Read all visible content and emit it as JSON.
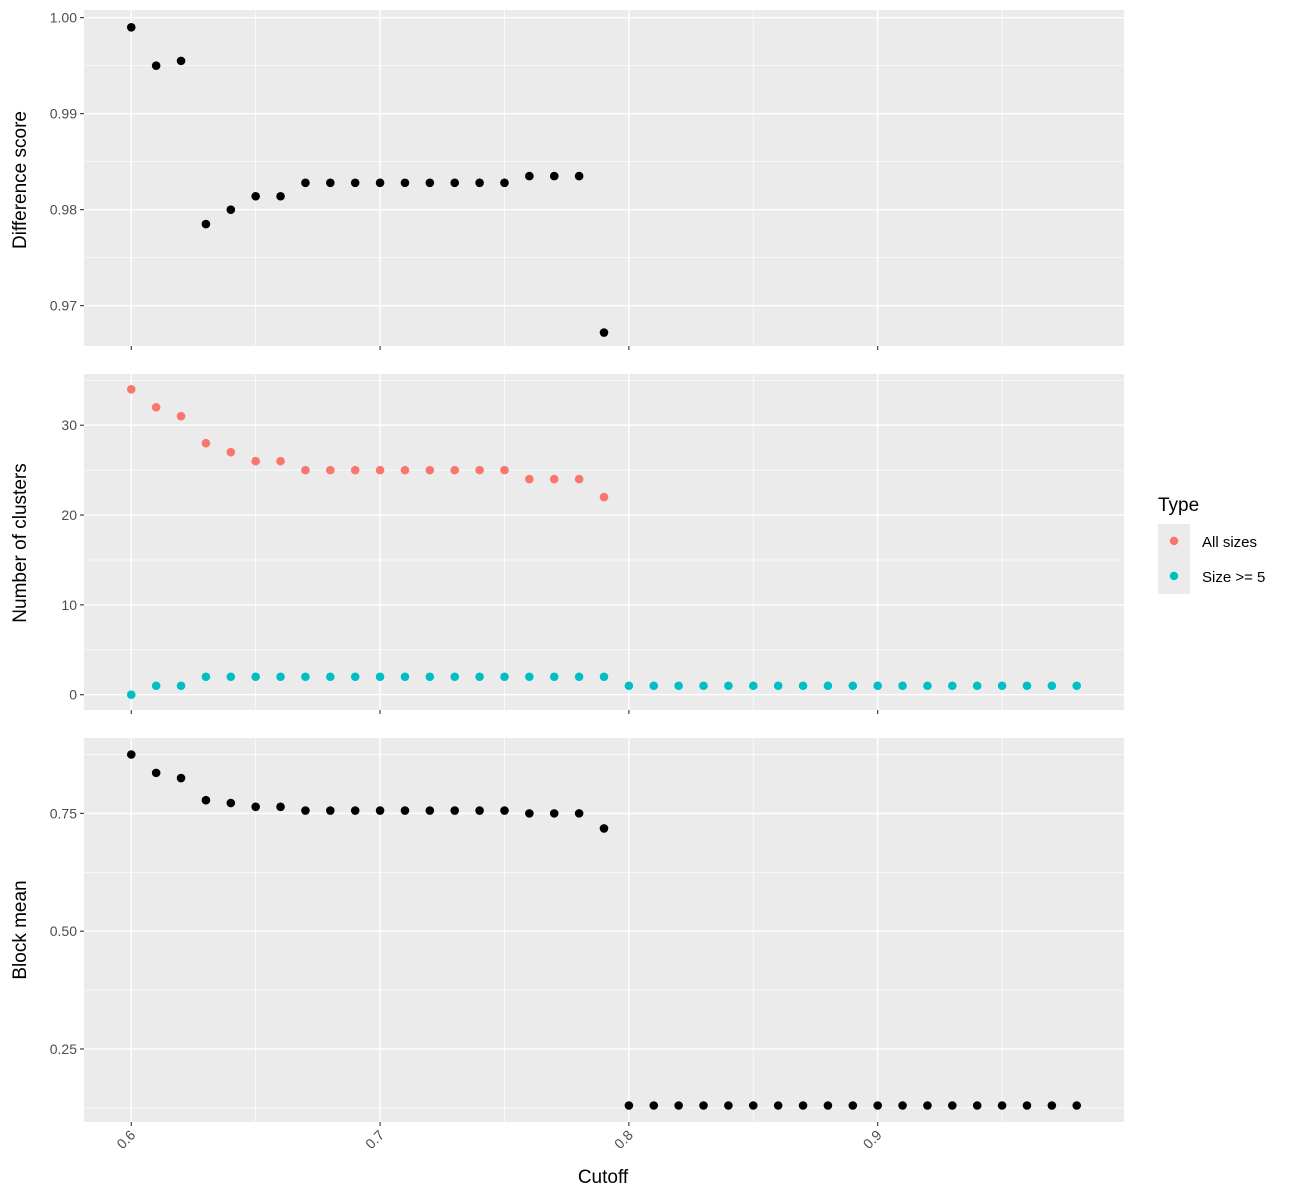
{
  "chart_data": {
    "type": "scatter",
    "xlabel": "Cutoff",
    "x_ticks": [
      "0.6",
      "0.7",
      "0.8",
      "0.9"
    ],
    "xlim": [
      0.581,
      0.999
    ],
    "grid": true,
    "legend": {
      "title": "Type",
      "position": "right",
      "entries": [
        {
          "label": "All sizes",
          "color": "#F8766D"
        },
        {
          "label": "Size >= 5",
          "color": "#00BFC4"
        }
      ]
    },
    "panels": [
      {
        "ylabel": "Difference score",
        "ylim": [
          0.9658,
          1.0008
        ],
        "y_ticks": [
          "1.00",
          "0.99",
          "0.98",
          "0.97"
        ],
        "y_tick_values": [
          1.0,
          0.99,
          0.98,
          0.97
        ],
        "series": [
          {
            "color": "#000000",
            "x": [
              0.6,
              0.61,
              0.62,
              0.63,
              0.64,
              0.65,
              0.66,
              0.67,
              0.68,
              0.69,
              0.7,
              0.71,
              0.72,
              0.73,
              0.74,
              0.75,
              0.76,
              0.77,
              0.78,
              0.79
            ],
            "y": [
              0.999,
              0.995,
              0.9955,
              0.9785,
              0.98,
              0.9814,
              0.9814,
              0.9828,
              0.9828,
              0.9828,
              0.9828,
              0.9828,
              0.9828,
              0.9828,
              0.9828,
              0.9828,
              0.9835,
              0.9835,
              0.9835,
              0.9672
            ]
          }
        ]
      },
      {
        "ylabel": "Number of clusters",
        "ylim": [
          -1.7,
          35.7
        ],
        "y_ticks": [
          "30",
          "20",
          "10",
          "0"
        ],
        "y_tick_values": [
          30,
          20,
          10,
          0
        ],
        "series": [
          {
            "name": "All sizes",
            "color": "#F8766D",
            "x": [
              0.6,
              0.61,
              0.62,
              0.63,
              0.64,
              0.65,
              0.66,
              0.67,
              0.68,
              0.69,
              0.7,
              0.71,
              0.72,
              0.73,
              0.74,
              0.75,
              0.76,
              0.77,
              0.78,
              0.79
            ],
            "y": [
              34,
              32,
              31,
              28,
              27,
              26,
              26,
              25,
              25,
              25,
              25,
              25,
              25,
              25,
              25,
              25,
              24,
              24,
              24,
              22
            ]
          },
          {
            "name": "Size >= 5",
            "color": "#00BFC4",
            "x": [
              0.6,
              0.61,
              0.62,
              0.63,
              0.64,
              0.65,
              0.66,
              0.67,
              0.68,
              0.69,
              0.7,
              0.71,
              0.72,
              0.73,
              0.74,
              0.75,
              0.76,
              0.77,
              0.78,
              0.79,
              0.8,
              0.81,
              0.82,
              0.83,
              0.84,
              0.85,
              0.86,
              0.87,
              0.88,
              0.89,
              0.9,
              0.91,
              0.92,
              0.93,
              0.94,
              0.95,
              0.96,
              0.97,
              0.98
            ],
            "y": [
              0,
              1,
              1,
              2,
              2,
              2,
              2,
              2,
              2,
              2,
              2,
              2,
              2,
              2,
              2,
              2,
              2,
              2,
              2,
              2,
              1,
              1,
              1,
              1,
              1,
              1,
              1,
              1,
              1,
              1,
              1,
              1,
              1,
              1,
              1,
              1,
              1,
              1,
              1
            ]
          }
        ]
      },
      {
        "ylabel": "Block mean",
        "ylim": [
          0.095,
          0.91
        ],
        "y_ticks": [
          "0.75",
          "0.50",
          "0.25"
        ],
        "y_tick_values": [
          0.75,
          0.5,
          0.25
        ],
        "series": [
          {
            "color": "#000000",
            "x": [
              0.6,
              0.61,
              0.62,
              0.63,
              0.64,
              0.65,
              0.66,
              0.67,
              0.68,
              0.69,
              0.7,
              0.71,
              0.72,
              0.73,
              0.74,
              0.75,
              0.76,
              0.77,
              0.78,
              0.79,
              0.8,
              0.81,
              0.82,
              0.83,
              0.84,
              0.85,
              0.86,
              0.87,
              0.88,
              0.89,
              0.9,
              0.91,
              0.92,
              0.93,
              0.94,
              0.95,
              0.96,
              0.97,
              0.98
            ],
            "y": [
              0.875,
              0.836,
              0.825,
              0.778,
              0.772,
              0.764,
              0.764,
              0.756,
              0.756,
              0.756,
              0.756,
              0.756,
              0.756,
              0.756,
              0.756,
              0.756,
              0.75,
              0.75,
              0.75,
              0.718,
              0.13,
              0.13,
              0.13,
              0.13,
              0.13,
              0.13,
              0.13,
              0.13,
              0.13,
              0.13,
              0.13,
              0.13,
              0.13,
              0.13,
              0.13,
              0.13,
              0.13,
              0.13,
              0.13
            ]
          }
        ]
      }
    ]
  }
}
